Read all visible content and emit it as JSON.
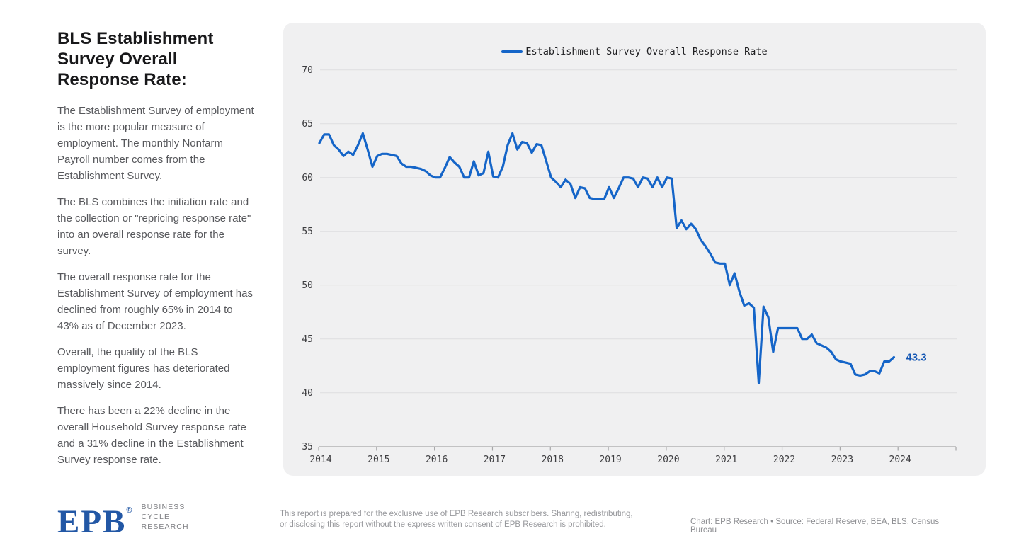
{
  "sidebar": {
    "title": "BLS Establishment Survey Overall Response Rate:",
    "paragraphs": [
      "The Establishment Survey of employment is the more popular measure of employment. The monthly Nonfarm Payroll number comes from the Establishment Survey.",
      "The BLS combines the initiation rate and the collection or \"repricing response rate\" into an overall response rate for the survey.",
      "The overall response rate for the Establishment Survey of employment has declined from roughly 65% in 2014 to 43% as of December 2023.",
      "Overall, the quality of the BLS employment figures has deteriorated massively since 2014.",
      "There has been a 22% decline in the overall Household Survey response rate and a 31% decline in the Establishment Survey response rate."
    ]
  },
  "chart": {
    "legend_label": "Establishment Survey Overall Response Rate",
    "end_label": "43.3"
  },
  "footer": {
    "logo_text": "EPB",
    "logo_reg": "®",
    "logo_tagline_lines": [
      "BUSINESS",
      "CYCLE",
      "RESEARCH"
    ],
    "disclaimer": "This report is prepared for the exclusive use of EPB Research subscribers. Sharing, redistributing, or disclosing this report without the express written consent of EPB Research is prohibited.",
    "credit": "Chart: EPB Research  •  Source: Federal Reserve, BEA, BLS, Census Bureau"
  },
  "chart_data": {
    "type": "line",
    "title": "",
    "legend": [
      "Establishment Survey Overall Response Rate"
    ],
    "legend_position": "top-center",
    "grid": true,
    "line_color": "#1565c8",
    "x_start": "2014-01",
    "frequency": "monthly",
    "xticks": [
      "2014",
      "2015",
      "2016",
      "2017",
      "2018",
      "2019",
      "2020",
      "2021",
      "2022",
      "2023",
      "2024"
    ],
    "yticks": [
      35,
      40,
      45,
      50,
      55,
      60,
      65,
      70
    ],
    "ylim": [
      35,
      71.5
    ],
    "end_value": 43.3,
    "values": [
      63.2,
      64.0,
      64.0,
      63.0,
      62.6,
      62.0,
      62.4,
      62.1,
      63.0,
      64.1,
      62.6,
      61.0,
      62.0,
      62.2,
      62.2,
      62.1,
      62.0,
      61.3,
      61.0,
      61.0,
      60.9,
      60.8,
      60.6,
      60.2,
      60.0,
      60.0,
      60.9,
      61.9,
      61.4,
      61.0,
      60.0,
      60.0,
      61.5,
      60.2,
      60.4,
      62.4,
      60.1,
      60.0,
      61.0,
      63.0,
      64.1,
      62.6,
      63.3,
      63.2,
      62.3,
      63.1,
      63.0,
      61.5,
      60.0,
      59.6,
      59.1,
      59.8,
      59.4,
      58.1,
      59.1,
      59.0,
      58.1,
      58.0,
      58.0,
      58.0,
      59.1,
      58.1,
      59.0,
      60.0,
      60.0,
      59.9,
      59.1,
      60.0,
      59.9,
      59.1,
      60.0,
      59.1,
      60.0,
      59.9,
      55.3,
      56.0,
      55.2,
      55.7,
      55.2,
      54.2,
      53.6,
      52.9,
      52.1,
      52.0,
      52.0,
      50.0,
      51.1,
      49.4,
      48.1,
      48.3,
      47.9,
      40.9,
      48.0,
      47.0,
      43.8,
      46.0,
      46.0,
      46.0,
      46.0,
      46.0,
      45.0,
      45.0,
      45.4,
      44.6,
      44.4,
      44.2,
      43.8,
      43.1,
      42.9,
      42.8,
      42.7,
      41.7,
      41.6,
      41.7,
      42.0,
      42.0,
      41.8,
      42.9,
      42.9,
      43.3
    ]
  }
}
